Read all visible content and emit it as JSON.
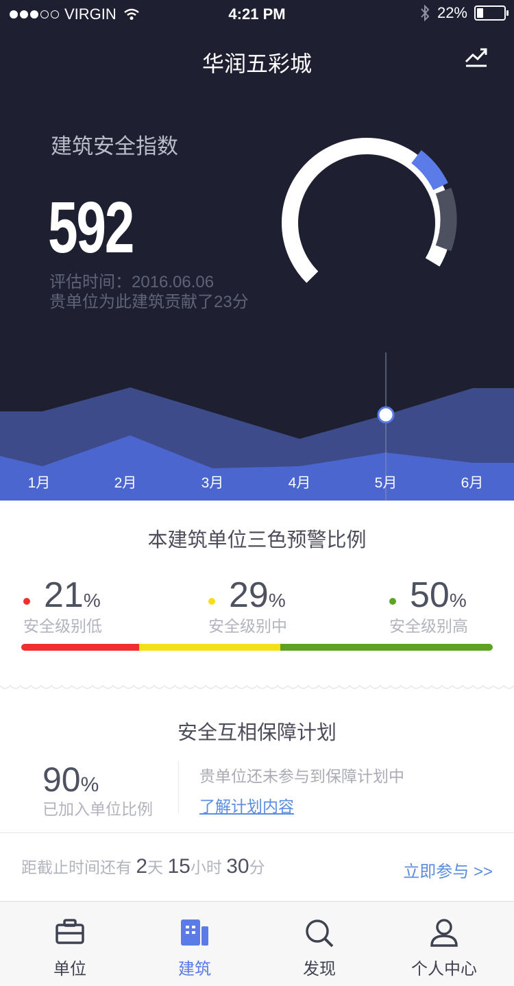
{
  "status_bar": {
    "carrier": "VIRGIN",
    "time": "4:21 PM",
    "battery": "22%",
    "battery_level": 0.22,
    "signal_bars_filled": 3,
    "signal_bars_total": 5
  },
  "header": {
    "title": "华润五彩城",
    "trend_icon": "trend-chart-icon"
  },
  "safety_index": {
    "label": "建筑安全指数",
    "value": "592",
    "eval_time": "评估时间：2016.06.06",
    "contribution": "贵单位为此建筑贡献了23分"
  },
  "trend": {
    "months": [
      "1月",
      "2月",
      "3月",
      "4月",
      "5月",
      "6月"
    ],
    "selected_month": "5月"
  },
  "warning_ratio": {
    "title": "本建筑单位三色预警比例",
    "items": [
      {
        "value": "21",
        "unit": "%",
        "caption": "安全级别低",
        "color": "#f0302c"
      },
      {
        "value": "29",
        "unit": "%",
        "caption": "安全级别中",
        "color": "#f5df1a"
      },
      {
        "value": "50",
        "unit": "%",
        "caption": "安全级别高",
        "color": "#5da323"
      }
    ]
  },
  "plan": {
    "title": "安全互相保障计划",
    "value": "90",
    "unit": "%",
    "caption": "已加入单位比例",
    "status": "贵单位还未参与到保障计划中",
    "link": "了解计划内容"
  },
  "deadline": {
    "prefix": "距截止时间还有",
    "days": "2",
    "days_unit": "天",
    "hours": "15",
    "hours_unit": "小时",
    "minutes": "30",
    "minutes_unit": "分",
    "cta": "立即参与 >>"
  },
  "tabs": [
    {
      "label": "单位",
      "icon": "briefcase-icon",
      "active": false
    },
    {
      "label": "建筑",
      "icon": "building-icon",
      "active": true
    },
    {
      "label": "发现",
      "icon": "search-icon",
      "active": false
    },
    {
      "label": "个人中心",
      "icon": "person-icon",
      "active": false
    }
  ],
  "colors": {
    "hero_bg": "#1e2031",
    "accent_blue": "#5a7be8",
    "link_blue": "#5b8de0"
  }
}
